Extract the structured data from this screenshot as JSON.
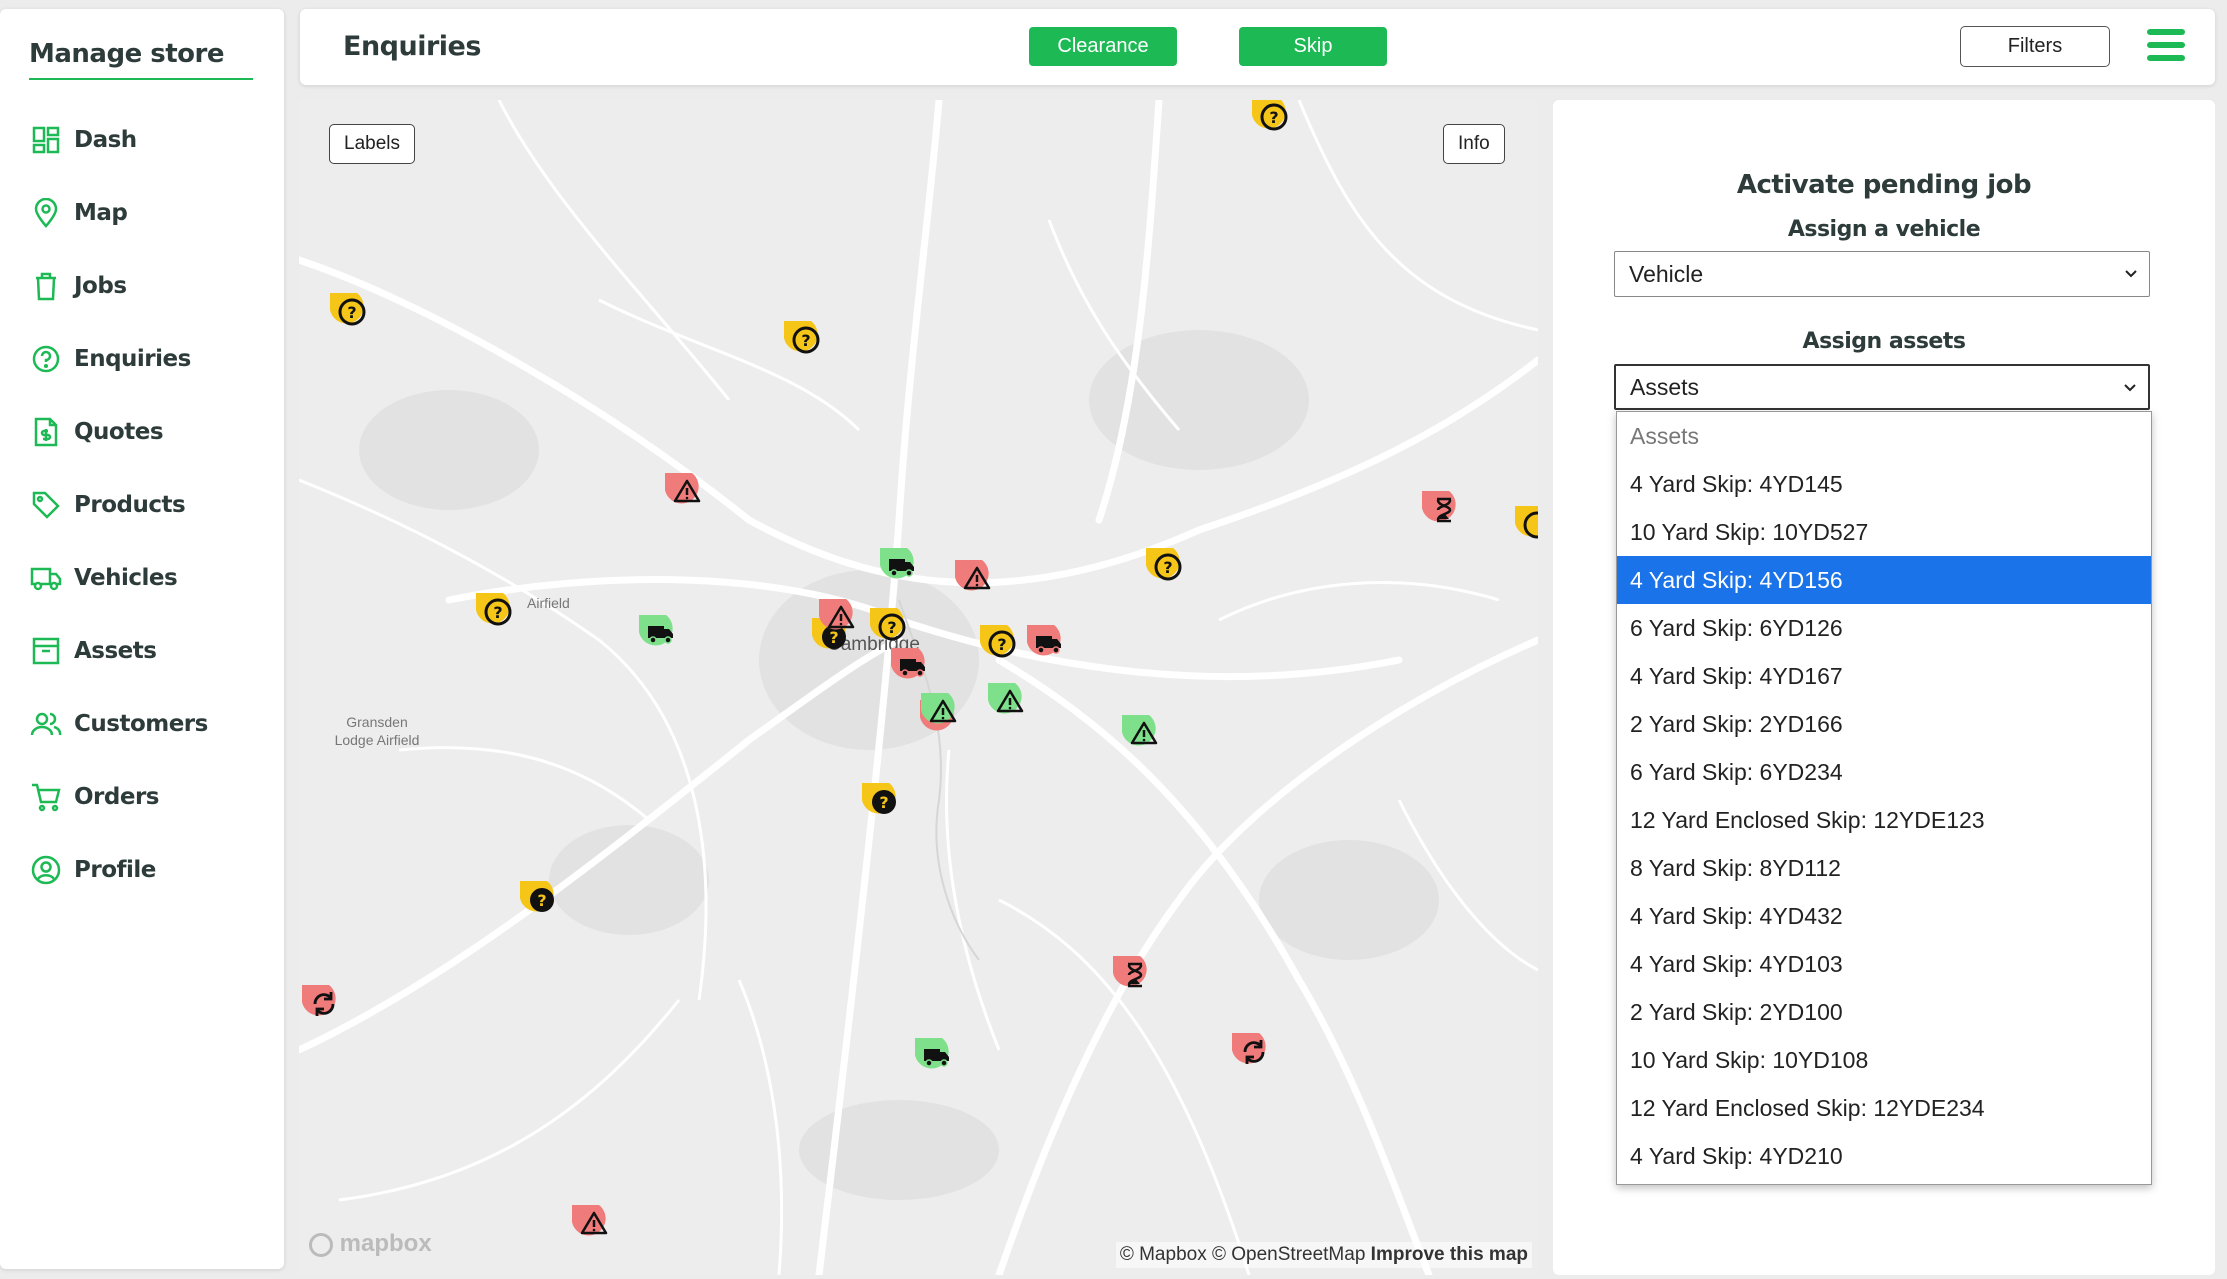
{
  "sidebar": {
    "brand": "Manage store",
    "items": [
      {
        "label": "Dash",
        "icon": "dashboard-icon"
      },
      {
        "label": "Map",
        "icon": "map-pin-icon"
      },
      {
        "label": "Jobs",
        "icon": "trash-bin-icon"
      },
      {
        "label": "Enquiries",
        "icon": "question-circle-icon"
      },
      {
        "label": "Quotes",
        "icon": "quote-document-icon"
      },
      {
        "label": "Products",
        "icon": "tag-icon"
      },
      {
        "label": "Vehicles",
        "icon": "truck-icon"
      },
      {
        "label": "Assets",
        "icon": "archive-box-icon"
      },
      {
        "label": "Customers",
        "icon": "users-icon"
      },
      {
        "label": "Orders",
        "icon": "shopping-cart-icon"
      },
      {
        "label": "Profile",
        "icon": "user-circle-icon"
      }
    ]
  },
  "header": {
    "title": "Enquiries",
    "clearance_label": "Clearance",
    "skip_label": "Skip",
    "filters_label": "Filters"
  },
  "map": {
    "labels_button": "Labels",
    "info_button": "Info",
    "place_labels": {
      "airfield": "Airfield",
      "city": "Cambridge",
      "gransden_1": "Gransden",
      "gransden_2": "Lodge Airfield"
    },
    "logo": "mapbox",
    "attribution": "© Mapbox © OpenStreetMap",
    "improve_link": "Improve this map"
  },
  "panel": {
    "title": "Activate pending job",
    "vehicle_heading": "Assign a vehicle",
    "vehicle_value": "Vehicle",
    "assets_heading": "Assign assets",
    "assets_value": "Assets"
  },
  "assets_options": [
    "Assets",
    "4 Yard Skip: 4YD145",
    "10 Yard Skip: 10YD527",
    "4 Yard Skip: 4YD156",
    "6 Yard Skip: 6YD126",
    "4 Yard Skip: 4YD167",
    "2 Yard Skip: 2YD166",
    "6 Yard Skip: 6YD234",
    "12 Yard Enclosed Skip: 12YDE123",
    "8 Yard Skip: 8YD112",
    "4 Yard Skip: 4YD432",
    "4 Yard Skip: 4YD103",
    "2 Yard Skip: 2YD100",
    "10 Yard Skip: 10YD108",
    "12 Yard Enclosed Skip: 12YDE234",
    "4 Yard Skip: 4YD210"
  ],
  "selected_asset_option": "4 Yard Skip: 4YD156",
  "colors": {
    "accent_green": "#1db954",
    "marker_yellow": "#f5c518",
    "marker_red": "#ef7b7b",
    "marker_green": "#7ee08a",
    "selected_blue": "#1a73e8"
  }
}
